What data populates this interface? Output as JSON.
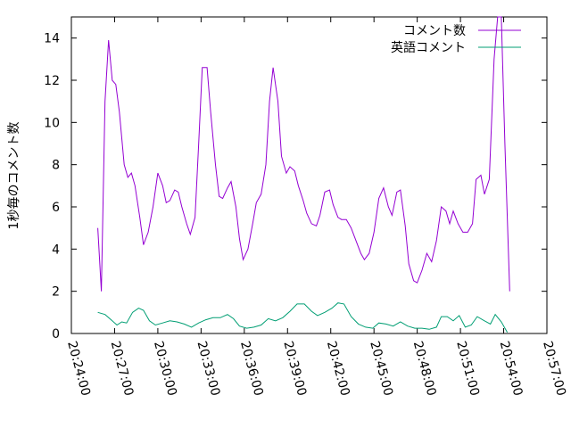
{
  "chart_data": {
    "type": "line",
    "title": "",
    "xlabel": "",
    "ylabel": "1秒毎のコメント数",
    "xlim": [
      "20:24:00",
      "20:57:00"
    ],
    "ylim": [
      0,
      15
    ],
    "grid": false,
    "legend_position": "top-right",
    "x_ticks": [
      "20:24:00",
      "20:27:00",
      "20:30:00",
      "20:33:00",
      "20:36:00",
      "20:39:00",
      "20:42:00",
      "20:45:00",
      "20:48:00",
      "20:51:00",
      "20:54:00",
      "20:57:00"
    ],
    "y_ticks": [
      0,
      2,
      4,
      6,
      8,
      10,
      12,
      14
    ],
    "series": [
      {
        "name": "コメント数",
        "color": "#9400d3",
        "points": [
          [
            "20:25:50",
            5.0
          ],
          [
            "20:26:05",
            2.0
          ],
          [
            "20:26:20",
            11.0
          ],
          [
            "20:26:35",
            13.9
          ],
          [
            "20:26:50",
            12.0
          ],
          [
            "20:27:05",
            11.8
          ],
          [
            "20:27:20",
            10.5
          ],
          [
            "20:27:40",
            8.0
          ],
          [
            "20:27:55",
            7.4
          ],
          [
            "20:28:10",
            7.6
          ],
          [
            "20:28:25",
            7.0
          ],
          [
            "20:28:45",
            5.5
          ],
          [
            "20:29:00",
            4.2
          ],
          [
            "20:29:20",
            4.8
          ],
          [
            "20:29:40",
            6.0
          ],
          [
            "20:30:00",
            7.6
          ],
          [
            "20:30:20",
            7.0
          ],
          [
            "20:30:35",
            6.2
          ],
          [
            "20:30:50",
            6.3
          ],
          [
            "20:31:10",
            6.8
          ],
          [
            "20:31:25",
            6.7
          ],
          [
            "20:31:40",
            6.0
          ],
          [
            "20:32:00",
            5.2
          ],
          [
            "20:32:15",
            4.7
          ],
          [
            "20:32:35",
            5.5
          ],
          [
            "20:32:50",
            9.0
          ],
          [
            "20:33:05",
            12.6
          ],
          [
            "20:33:25",
            12.6
          ],
          [
            "20:33:40",
            10.5
          ],
          [
            "20:34:00",
            8.0
          ],
          [
            "20:34:15",
            6.5
          ],
          [
            "20:34:30",
            6.4
          ],
          [
            "20:34:50",
            6.9
          ],
          [
            "20:35:05",
            7.2
          ],
          [
            "20:35:25",
            6.0
          ],
          [
            "20:35:40",
            4.5
          ],
          [
            "20:35:55",
            3.5
          ],
          [
            "20:36:15",
            4.0
          ],
          [
            "20:36:35",
            5.2
          ],
          [
            "20:36:50",
            6.2
          ],
          [
            "20:37:10",
            6.6
          ],
          [
            "20:37:30",
            8.0
          ],
          [
            "20:37:45",
            11.0
          ],
          [
            "20:38:00",
            12.6
          ],
          [
            "20:38:20",
            11.0
          ],
          [
            "20:38:35",
            8.4
          ],
          [
            "20:38:55",
            7.6
          ],
          [
            "20:39:10",
            7.9
          ],
          [
            "20:39:30",
            7.7
          ],
          [
            "20:39:45",
            7.0
          ],
          [
            "20:40:05",
            6.3
          ],
          [
            "20:40:20",
            5.7
          ],
          [
            "20:40:40",
            5.2
          ],
          [
            "20:41:00",
            5.1
          ],
          [
            "20:41:15",
            5.6
          ],
          [
            "20:41:35",
            6.7
          ],
          [
            "20:41:55",
            6.8
          ],
          [
            "20:42:10",
            6.1
          ],
          [
            "20:42:30",
            5.5
          ],
          [
            "20:42:45",
            5.4
          ],
          [
            "20:43:05",
            5.4
          ],
          [
            "20:43:25",
            5.0
          ],
          [
            "20:43:45",
            4.4
          ],
          [
            "20:44:05",
            3.8
          ],
          [
            "20:44:20",
            3.5
          ],
          [
            "20:44:40",
            3.8
          ],
          [
            "20:45:00",
            4.8
          ],
          [
            "20:45:20",
            6.4
          ],
          [
            "20:45:40",
            6.9
          ],
          [
            "20:46:00",
            6.0
          ],
          [
            "20:46:15",
            5.6
          ],
          [
            "20:46:35",
            6.7
          ],
          [
            "20:46:50",
            6.8
          ],
          [
            "20:47:10",
            5.1
          ],
          [
            "20:47:25",
            3.3
          ],
          [
            "20:47:45",
            2.5
          ],
          [
            "20:48:00",
            2.4
          ],
          [
            "20:48:20",
            3.0
          ],
          [
            "20:48:40",
            3.8
          ],
          [
            "20:49:00",
            3.4
          ],
          [
            "20:49:20",
            4.4
          ],
          [
            "20:49:40",
            6.0
          ],
          [
            "20:50:00",
            5.8
          ],
          [
            "20:50:15",
            5.2
          ],
          [
            "20:50:30",
            5.8
          ],
          [
            "20:50:50",
            5.2
          ],
          [
            "20:51:10",
            4.8
          ],
          [
            "20:51:30",
            4.8
          ],
          [
            "20:51:50",
            5.2
          ],
          [
            "20:52:05",
            7.3
          ],
          [
            "20:52:25",
            7.5
          ],
          [
            "20:52:40",
            6.6
          ],
          [
            "20:53:00",
            7.3
          ],
          [
            "20:53:20",
            13.0
          ],
          [
            "20:53:35",
            15.0
          ],
          [
            "20:53:50",
            15.0
          ],
          [
            "20:54:05",
            9.0
          ],
          [
            "20:54:25",
            2.0
          ]
        ]
      },
      {
        "name": "英語コメント",
        "color": "#009e73",
        "points": [
          [
            "20:25:50",
            1.0
          ],
          [
            "20:26:20",
            0.9
          ],
          [
            "20:26:50",
            0.6
          ],
          [
            "20:27:10",
            0.4
          ],
          [
            "20:27:30",
            0.55
          ],
          [
            "20:27:50",
            0.5
          ],
          [
            "20:28:15",
            1.0
          ],
          [
            "20:28:40",
            1.2
          ],
          [
            "20:29:00",
            1.1
          ],
          [
            "20:29:25",
            0.6
          ],
          [
            "20:29:50",
            0.4
          ],
          [
            "20:30:20",
            0.5
          ],
          [
            "20:30:50",
            0.6
          ],
          [
            "20:31:20",
            0.55
          ],
          [
            "20:31:50",
            0.45
          ],
          [
            "20:32:20",
            0.3
          ],
          [
            "20:32:50",
            0.5
          ],
          [
            "20:33:20",
            0.65
          ],
          [
            "20:33:50",
            0.75
          ],
          [
            "20:34:20",
            0.75
          ],
          [
            "20:34:50",
            0.9
          ],
          [
            "20:35:15",
            0.7
          ],
          [
            "20:35:40",
            0.35
          ],
          [
            "20:36:10",
            0.25
          ],
          [
            "20:36:40",
            0.3
          ],
          [
            "20:37:10",
            0.4
          ],
          [
            "20:37:40",
            0.7
          ],
          [
            "20:38:10",
            0.6
          ],
          [
            "20:38:40",
            0.75
          ],
          [
            "20:39:10",
            1.05
          ],
          [
            "20:39:40",
            1.4
          ],
          [
            "20:40:10",
            1.4
          ],
          [
            "20:40:40",
            1.05
          ],
          [
            "20:41:05",
            0.85
          ],
          [
            "20:41:35",
            1.0
          ],
          [
            "20:42:05",
            1.2
          ],
          [
            "20:42:30",
            1.45
          ],
          [
            "20:42:55",
            1.4
          ],
          [
            "20:43:25",
            0.8
          ],
          [
            "20:43:55",
            0.45
          ],
          [
            "20:44:25",
            0.3
          ],
          [
            "20:44:55",
            0.25
          ],
          [
            "20:45:20",
            0.5
          ],
          [
            "20:45:50",
            0.45
          ],
          [
            "20:46:20",
            0.35
          ],
          [
            "20:46:50",
            0.55
          ],
          [
            "20:47:20",
            0.35
          ],
          [
            "20:47:50",
            0.25
          ],
          [
            "20:48:20",
            0.25
          ],
          [
            "20:48:50",
            0.2
          ],
          [
            "20:49:20",
            0.3
          ],
          [
            "20:49:40",
            0.8
          ],
          [
            "20:50:05",
            0.8
          ],
          [
            "20:50:30",
            0.6
          ],
          [
            "20:50:55",
            0.85
          ],
          [
            "20:51:20",
            0.3
          ],
          [
            "20:51:45",
            0.4
          ],
          [
            "20:52:10",
            0.8
          ],
          [
            "20:52:40",
            0.6
          ],
          [
            "20:53:05",
            0.45
          ],
          [
            "20:53:25",
            0.9
          ],
          [
            "20:53:50",
            0.55
          ],
          [
            "20:54:15",
            0.05
          ]
        ]
      }
    ]
  }
}
